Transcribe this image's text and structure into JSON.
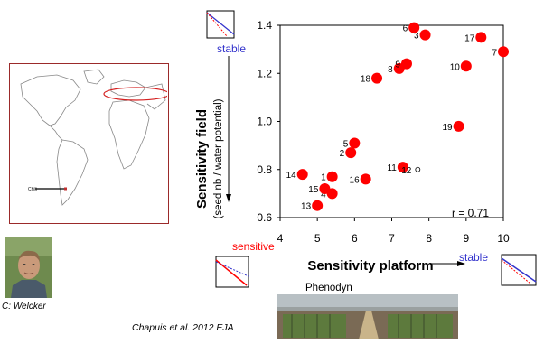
{
  "chart_data": {
    "type": "scatter",
    "xlabel": "Sensitivity platform",
    "ylabel": "Sensitivity field",
    "ylabel_sub": "(seed nb / water potential)",
    "xlim": [
      4,
      10
    ],
    "ylim": [
      0.6,
      1.4
    ],
    "xticks": [
      "4",
      "5",
      "6",
      "7",
      "8",
      "9",
      "10"
    ],
    "yticks": [
      "0.6",
      "0.8",
      "1.0",
      "1.2",
      "1.4"
    ],
    "annotation": "r = 0.71",
    "marker_color": "#ff0000",
    "points": [
      {
        "label": "1",
        "x": 5.4,
        "y": 0.77,
        "filled": true
      },
      {
        "label": "2",
        "x": 5.9,
        "y": 0.87,
        "filled": true
      },
      {
        "label": "3",
        "x": 7.9,
        "y": 1.36,
        "filled": true
      },
      {
        "label": "4",
        "x": 5.4,
        "y": 0.7,
        "filled": true
      },
      {
        "label": "5",
        "x": 6.0,
        "y": 0.91,
        "filled": true
      },
      {
        "label": "6",
        "x": 7.6,
        "y": 1.39,
        "filled": true
      },
      {
        "label": "7",
        "x": 10.0,
        "y": 1.29,
        "filled": true
      },
      {
        "label": "8",
        "x": 7.2,
        "y": 1.22,
        "filled": true
      },
      {
        "label": "9",
        "x": 7.4,
        "y": 1.24,
        "filled": true
      },
      {
        "label": "10",
        "x": 9.0,
        "y": 1.23,
        "filled": true
      },
      {
        "label": "11",
        "x": 7.3,
        "y": 0.81,
        "filled": true
      },
      {
        "label": "12",
        "x": 7.7,
        "y": 0.8,
        "filled": false
      },
      {
        "label": "13",
        "x": 5.0,
        "y": 0.65,
        "filled": true
      },
      {
        "label": "14",
        "x": 4.6,
        "y": 0.78,
        "filled": true
      },
      {
        "label": "15",
        "x": 5.2,
        "y": 0.72,
        "filled": true
      },
      {
        "label": "16",
        "x": 6.3,
        "y": 0.76,
        "filled": true
      },
      {
        "label": "17",
        "x": 9.4,
        "y": 1.35,
        "filled": true
      },
      {
        "label": "18",
        "x": 6.6,
        "y": 1.18,
        "filled": true
      },
      {
        "label": "19",
        "x": 8.8,
        "y": 0.98,
        "filled": true
      }
    ]
  },
  "labels": {
    "stable_top": "stable",
    "sensitive": "sensitive",
    "stable_right": "stable",
    "phenodyn": "Phenodyn",
    "photo_credit": "C: Welcker",
    "citation": "Chapuis et al. 2012 EJA",
    "map_marker": "Chili"
  },
  "colors": {
    "stable": "#3333cc",
    "sensitive": "#ff0000",
    "map_border": "#9b2a2a"
  }
}
